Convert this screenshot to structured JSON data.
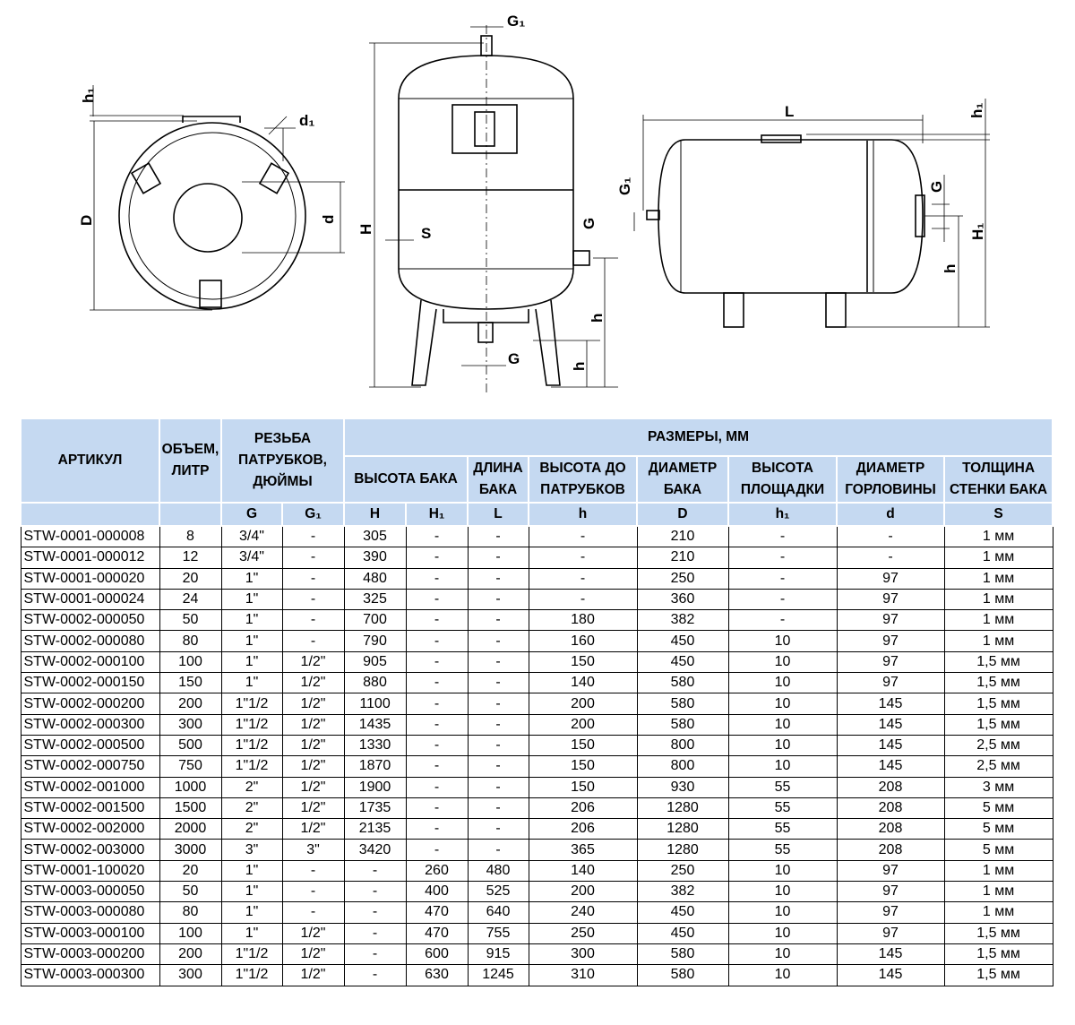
{
  "drawing_labels": {
    "top_view": {
      "h1": "h₁",
      "d1": "d₁",
      "D": "D",
      "d": "d"
    },
    "vertical_view": {
      "G1": "G₁",
      "H": "H",
      "S": "S",
      "G_side": "G",
      "h_side": "h",
      "G_bottom": "G",
      "h_bottom": "h"
    },
    "horizontal_view": {
      "L": "L",
      "h1": "h₁",
      "G1": "G₁",
      "G": "G",
      "H1": "H₁",
      "h": "h"
    }
  },
  "table": {
    "headers": {
      "article": "АРТИКУЛ",
      "volume": "ОБЪЕМ, ЛИТР",
      "thread": "РЕЗЬБА ПАТРУБКОВ, ДЮЙМЫ",
      "dimensions": "РАЗМЕРЫ, ММ",
      "height": "ВЫСОТА БАКА",
      "length": "ДЛИНА БАКА",
      "height_to_pipes": "ВЫСОТА ДО ПАТРУБКОВ",
      "diameter": "ДИАМЕТР БАКА",
      "platform_height": "ВЫСОТА ПЛОЩАДКИ",
      "neck_diameter": "ДИАМЕТР ГОРЛОВИНЫ",
      "wall_thickness": "ТОЛЩИНА СТЕНКИ БАКА"
    },
    "symbols": [
      "G",
      "G₁",
      "H",
      "H₁",
      "L",
      "h",
      "D",
      "h₁",
      "d",
      "S"
    ],
    "rows": [
      [
        "STW-0001-000008",
        "8",
        "3/4\"",
        "-",
        "305",
        "-",
        "-",
        "-",
        "210",
        "-",
        "-",
        "1 мм"
      ],
      [
        "STW-0001-000012",
        "12",
        "3/4\"",
        "-",
        "390",
        "-",
        "-",
        "-",
        "210",
        "-",
        "-",
        "1 мм"
      ],
      [
        "STW-0001-000020",
        "20",
        "1\"",
        "-",
        "480",
        "-",
        "-",
        "-",
        "250",
        "-",
        "97",
        "1 мм"
      ],
      [
        "STW-0001-000024",
        "24",
        "1\"",
        "-",
        "325",
        "-",
        "-",
        "-",
        "360",
        "-",
        "97",
        "1 мм"
      ],
      [
        "STW-0002-000050",
        "50",
        "1\"",
        "-",
        "700",
        "-",
        "-",
        "180",
        "382",
        "-",
        "97",
        "1 мм"
      ],
      [
        "STW-0002-000080",
        "80",
        "1\"",
        "-",
        "790",
        "-",
        "-",
        "160",
        "450",
        "10",
        "97",
        "1 мм"
      ],
      [
        "STW-0002-000100",
        "100",
        "1\"",
        "1/2\"",
        "905",
        "-",
        "-",
        "150",
        "450",
        "10",
        "97",
        "1,5 мм"
      ],
      [
        "STW-0002-000150",
        "150",
        "1\"",
        "1/2\"",
        "880",
        "-",
        "-",
        "140",
        "580",
        "10",
        "97",
        "1,5 мм"
      ],
      [
        "STW-0002-000200",
        "200",
        "1\"1/2",
        "1/2\"",
        "1100",
        "-",
        "-",
        "200",
        "580",
        "10",
        "145",
        "1,5 мм"
      ],
      [
        "STW-0002-000300",
        "300",
        "1\"1/2",
        "1/2\"",
        "1435",
        "-",
        "-",
        "200",
        "580",
        "10",
        "145",
        "1,5 мм"
      ],
      [
        "STW-0002-000500",
        "500",
        "1\"1/2",
        "1/2\"",
        "1330",
        "-",
        "-",
        "150",
        "800",
        "10",
        "145",
        "2,5 мм"
      ],
      [
        "STW-0002-000750",
        "750",
        "1\"1/2",
        "1/2\"",
        "1870",
        "-",
        "-",
        "150",
        "800",
        "10",
        "145",
        "2,5 мм"
      ],
      [
        "STW-0002-001000",
        "1000",
        "2\"",
        "1/2\"",
        "1900",
        "-",
        "-",
        "150",
        "930",
        "55",
        "208",
        "3 мм"
      ],
      [
        "STW-0002-001500",
        "1500",
        "2\"",
        "1/2\"",
        "1735",
        "-",
        "-",
        "206",
        "1280",
        "55",
        "208",
        "5 мм"
      ],
      [
        "STW-0002-002000",
        "2000",
        "2\"",
        "1/2\"",
        "2135",
        "-",
        "-",
        "206",
        "1280",
        "55",
        "208",
        "5 мм"
      ],
      [
        "STW-0002-003000",
        "3000",
        "3\"",
        "3\"",
        "3420",
        "-",
        "-",
        "365",
        "1280",
        "55",
        "208",
        "5 мм"
      ],
      [
        "STW-0001-100020",
        "20",
        "1\"",
        "-",
        "-",
        "260",
        "480",
        "140",
        "250",
        "10",
        "97",
        "1 мм"
      ],
      [
        "STW-0003-000050",
        "50",
        "1\"",
        "-",
        "-",
        "400",
        "525",
        "200",
        "382",
        "10",
        "97",
        "1 мм"
      ],
      [
        "STW-0003-000080",
        "80",
        "1\"",
        "-",
        "-",
        "470",
        "640",
        "240",
        "450",
        "10",
        "97",
        "1 мм"
      ],
      [
        "STW-0003-000100",
        "100",
        "1\"",
        "1/2\"",
        "-",
        "470",
        "755",
        "250",
        "450",
        "10",
        "97",
        "1,5 мм"
      ],
      [
        "STW-0003-000200",
        "200",
        "1\"1/2",
        "1/2\"",
        "-",
        "600",
        "915",
        "300",
        "580",
        "10",
        "145",
        "1,5 мм"
      ],
      [
        "STW-0003-000300",
        "300",
        "1\"1/2",
        "1/2\"",
        "-",
        "630",
        "1245",
        "310",
        "580",
        "10",
        "145",
        "1,5 мм"
      ]
    ]
  },
  "colors": {
    "header_bg": "#c5d9f1",
    "line": "#000000"
  }
}
